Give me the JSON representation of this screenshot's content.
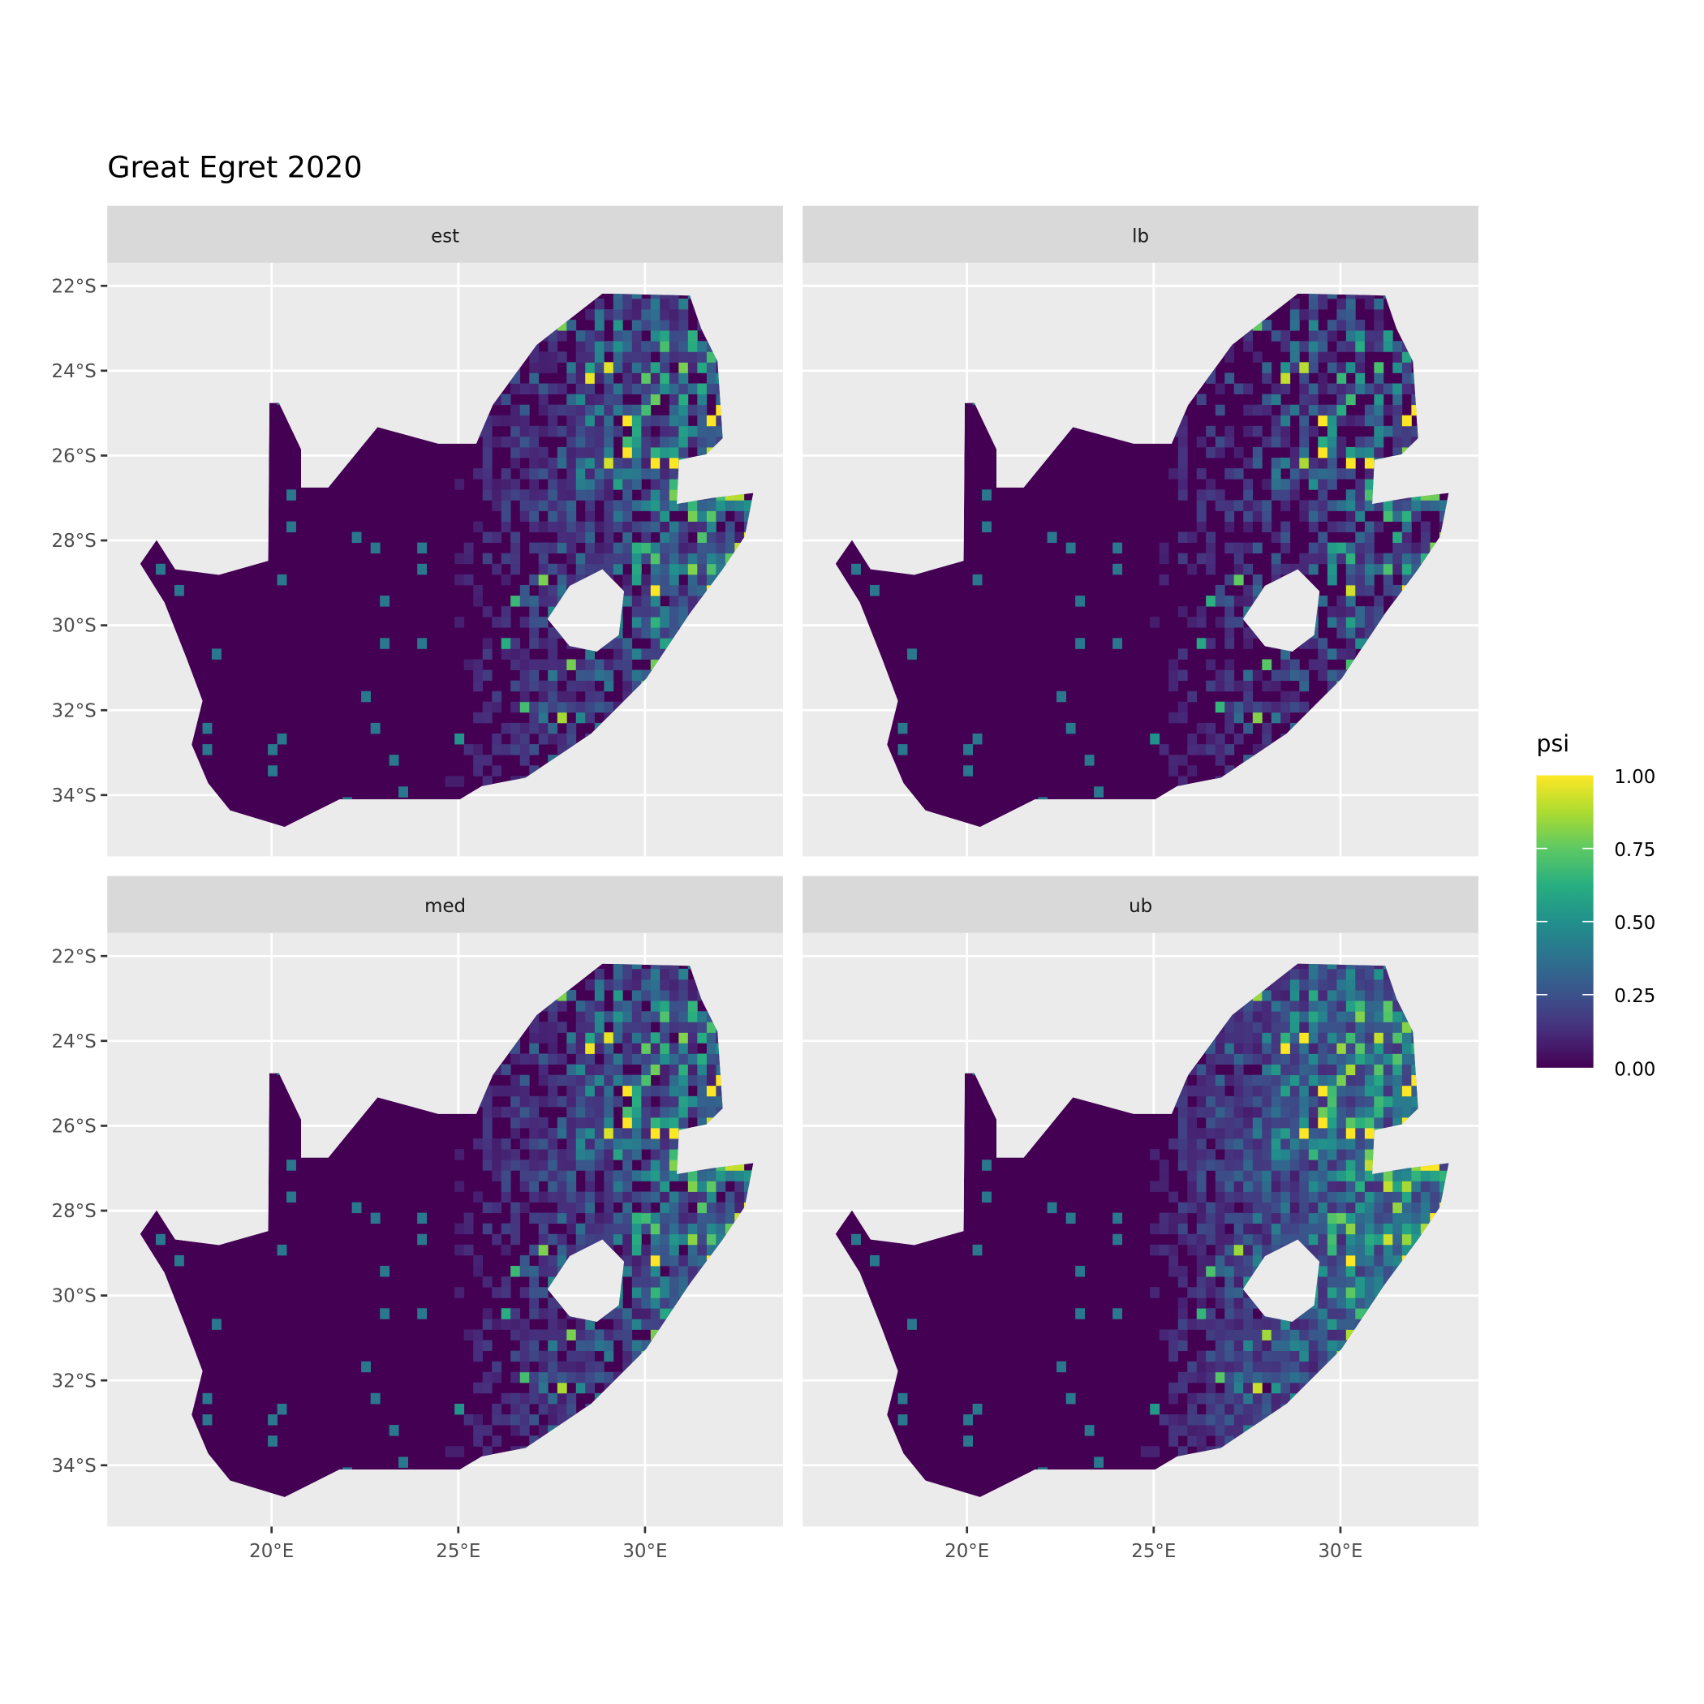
{
  "chart_data": {
    "type": "heatmap",
    "title": "Great Egret 2020",
    "facets": [
      "est",
      "lb",
      "med",
      "ub"
    ],
    "x_ticks": [
      20,
      25,
      30
    ],
    "x_tick_labels": [
      "20°E",
      "25°E",
      "30°E"
    ],
    "y_ticks": [
      -22,
      -24,
      -26,
      -28,
      -30,
      -32,
      -34
    ],
    "y_tick_labels": [
      "22°S",
      "24°S",
      "26°S",
      "28°S",
      "30°S",
      "32°S",
      "34°S"
    ],
    "xlim": [
      15.6,
      33.7
    ],
    "ylim": [
      -35.44,
      -21.46
    ],
    "grid": true,
    "legend": {
      "title": "psi",
      "position": "right",
      "range": [
        0,
        1
      ],
      "breaks": [
        1.0,
        0.75,
        0.5,
        0.25,
        0.0
      ],
      "labels": [
        "1.00",
        "0.75",
        "0.50",
        "0.25",
        "0.00"
      ],
      "colormap": "viridis",
      "colors": [
        "#440154",
        "#3b528b",
        "#21908c",
        "#5dc963",
        "#fde725"
      ]
    },
    "region_outline_lonlat": [
      [
        19.94,
        -24.76
      ],
      [
        20.2,
        -24.76
      ],
      [
        20.79,
        -25.85
      ],
      [
        20.79,
        -26.75
      ],
      [
        21.52,
        -26.75
      ],
      [
        22.84,
        -25.33
      ],
      [
        24.46,
        -25.72
      ],
      [
        25.48,
        -25.72
      ],
      [
        25.92,
        -24.81
      ],
      [
        27.1,
        -23.39
      ],
      [
        28.86,
        -22.18
      ],
      [
        31.2,
        -22.23
      ],
      [
        31.5,
        -23.0
      ],
      [
        31.94,
        -23.78
      ],
      [
        32.08,
        -25.59
      ],
      [
        31.64,
        -25.97
      ],
      [
        30.91,
        -26.1
      ],
      [
        30.85,
        -27.14
      ],
      [
        31.79,
        -27.0
      ],
      [
        32.9,
        -26.88
      ],
      [
        32.67,
        -27.91
      ],
      [
        32.08,
        -28.68
      ],
      [
        31.2,
        -29.72
      ],
      [
        30.03,
        -31.26
      ],
      [
        28.56,
        -32.55
      ],
      [
        26.8,
        -33.59
      ],
      [
        25.63,
        -33.79
      ],
      [
        25.04,
        -34.1
      ],
      [
        21.82,
        -34.1
      ],
      [
        20.35,
        -34.75
      ],
      [
        18.89,
        -34.36
      ],
      [
        18.3,
        -33.72
      ],
      [
        17.86,
        -32.81
      ],
      [
        18.15,
        -31.78
      ],
      [
        17.71,
        -30.75
      ],
      [
        17.13,
        -29.46
      ],
      [
        16.48,
        -28.55
      ],
      [
        16.92,
        -27.99
      ],
      [
        17.42,
        -28.68
      ],
      [
        18.59,
        -28.81
      ],
      [
        19.91,
        -28.48
      ]
    ],
    "excluded_outline_lonlat": [
      [
        27.39,
        -29.85
      ],
      [
        27.98,
        -29.07
      ],
      [
        28.86,
        -28.68
      ],
      [
        29.44,
        -29.2
      ],
      [
        29.3,
        -30.23
      ],
      [
        28.71,
        -30.62
      ],
      [
        27.98,
        -30.49
      ]
    ],
    "panel_background": "#ebebeb",
    "strip_background": "#d9d9d9"
  }
}
